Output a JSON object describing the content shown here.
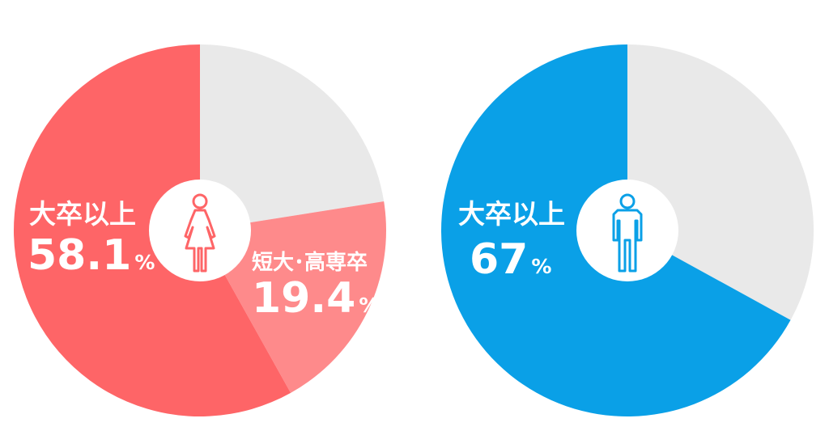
{
  "chart_data": [
    {
      "type": "pie",
      "icon": "female-icon",
      "colors": {
        "primary": "#fe6567",
        "secondary": "#fe8a8b",
        "remainder": "#e9e9e9"
      },
      "slices": [
        {
          "label": "大卒以上",
          "value": 58.1,
          "value_text": "58.1",
          "unit": "%",
          "color": "#fe6567"
        },
        {
          "label": "短大･高専卒",
          "value": 19.4,
          "value_text": "19.4",
          "unit": "%",
          "color": "#fe8a8b"
        },
        {
          "label": "",
          "value": 22.5,
          "value_text": "",
          "unit": "",
          "color": "#e9e9e9"
        }
      ]
    },
    {
      "type": "pie",
      "icon": "male-icon",
      "colors": {
        "primary": "#0aa0e7",
        "remainder": "#e9e9e9"
      },
      "slices": [
        {
          "label": "大卒以上",
          "value": 67,
          "value_text": "67",
          "unit": "%",
          "color": "#0aa0e7"
        },
        {
          "label": "",
          "value": 33,
          "value_text": "",
          "unit": "",
          "color": "#e9e9e9"
        }
      ]
    }
  ]
}
